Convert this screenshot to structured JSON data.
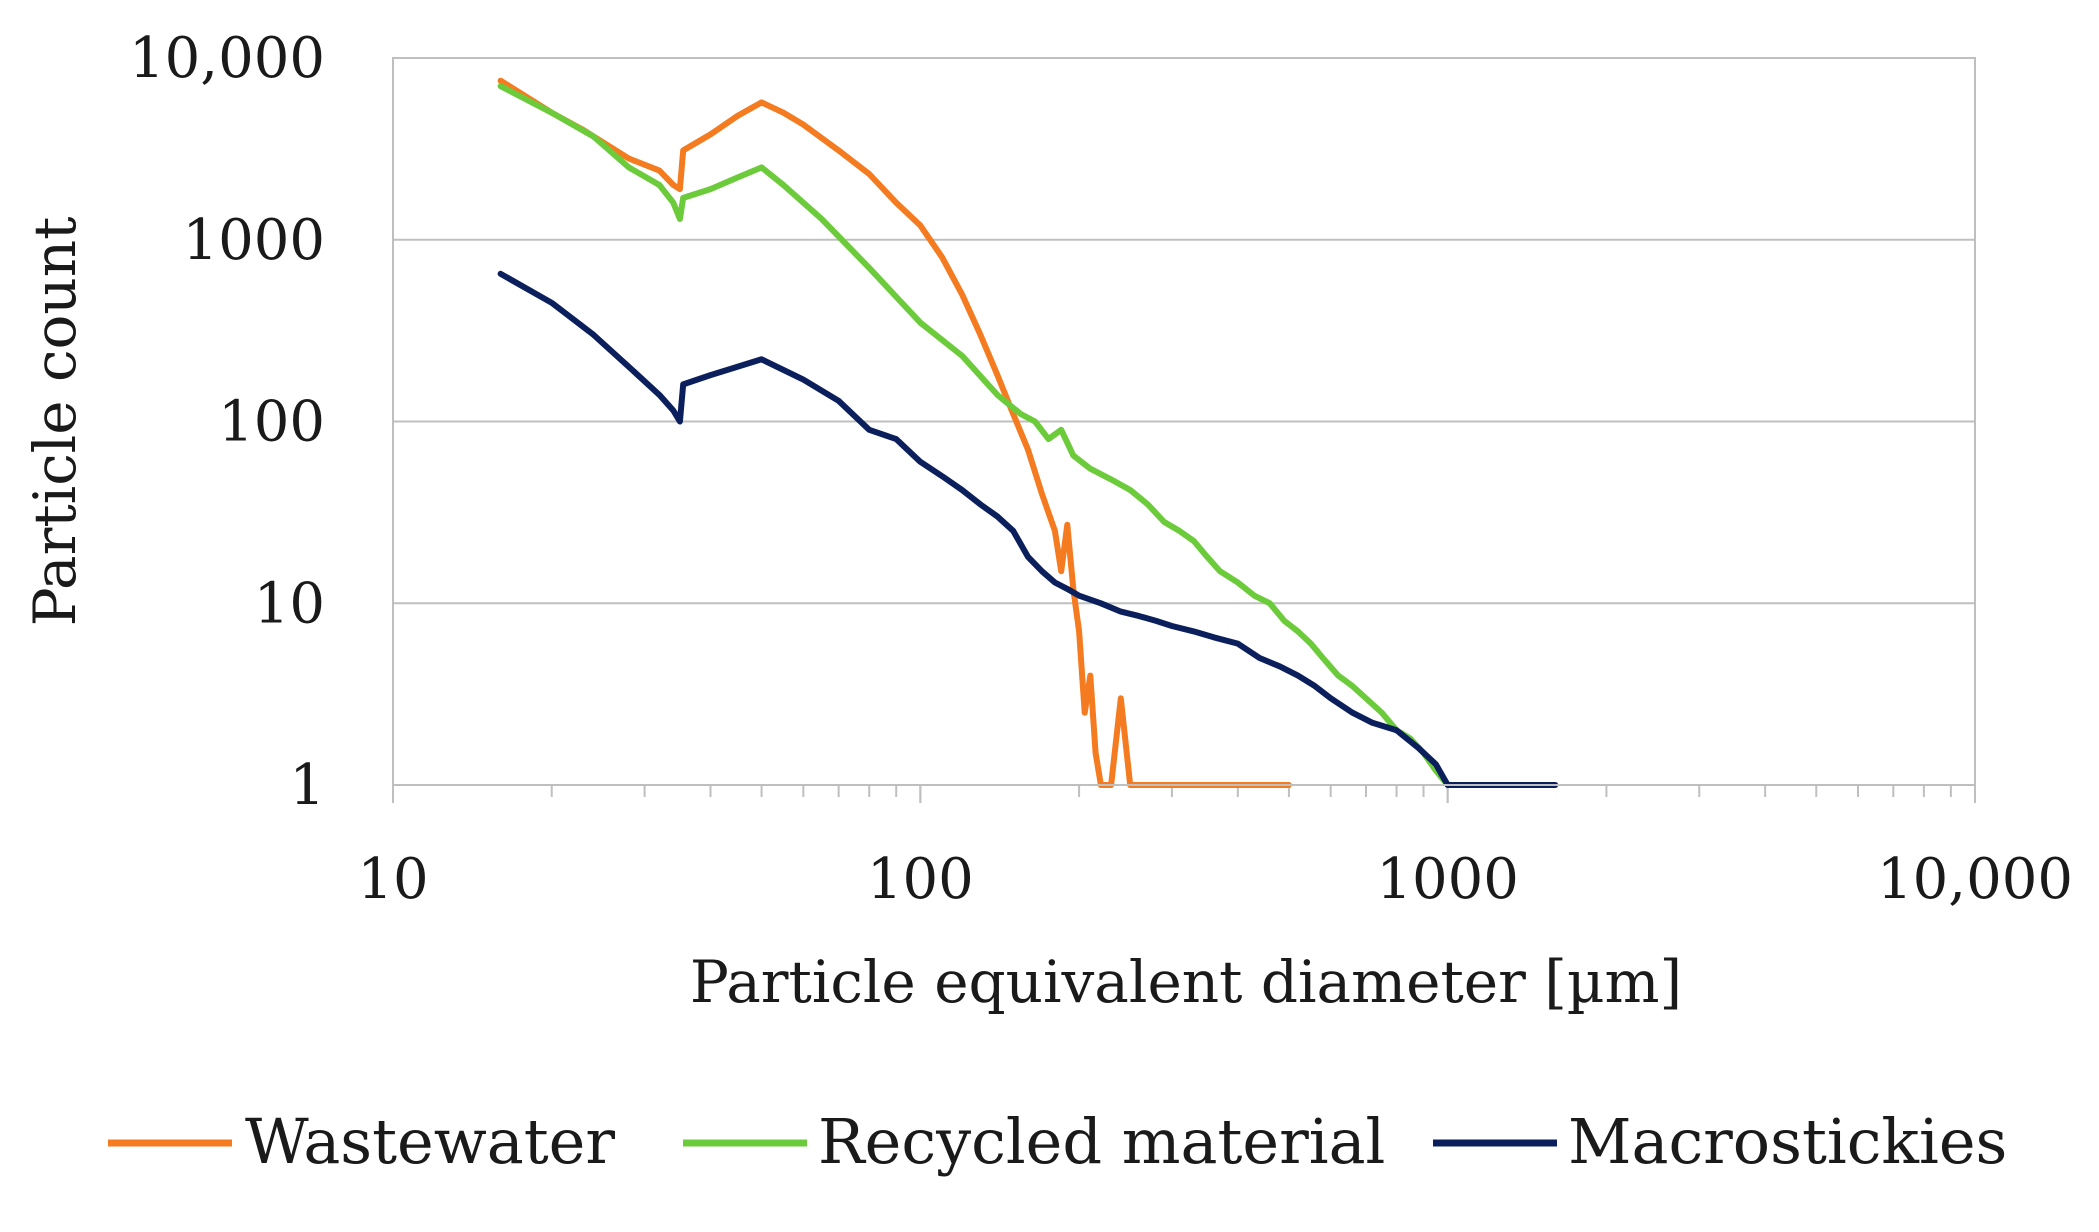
{
  "chart_data": {
    "type": "line",
    "xlabel": "Particle equivalent diameter [µm]",
    "ylabel": "Particle count",
    "x_scale": "log",
    "y_scale": "log",
    "xlim": [
      10,
      10000
    ],
    "ylim": [
      1,
      10000
    ],
    "x_ticks": [
      10,
      100,
      1000,
      10000
    ],
    "x_tick_labels": [
      "10",
      "100",
      "1000",
      "10,000"
    ],
    "y_ticks": [
      1,
      10,
      100,
      1000,
      10000
    ],
    "y_tick_labels": [
      "1",
      "10",
      "100",
      "1000",
      "10,000"
    ],
    "grid": "horizontal",
    "legend_position": "bottom",
    "series": [
      {
        "name": "Wastewater",
        "color": "#F47B20",
        "points": [
          [
            16,
            7500
          ],
          [
            20,
            5000
          ],
          [
            23,
            4000
          ],
          [
            28,
            2800
          ],
          [
            32,
            2400
          ],
          [
            34,
            2000
          ],
          [
            35,
            1900
          ],
          [
            35.5,
            3100
          ],
          [
            40,
            3800
          ],
          [
            45,
            4800
          ],
          [
            50,
            5700
          ],
          [
            55,
            5000
          ],
          [
            60,
            4300
          ],
          [
            70,
            3100
          ],
          [
            80,
            2300
          ],
          [
            90,
            1600
          ],
          [
            100,
            1200
          ],
          [
            110,
            800
          ],
          [
            120,
            500
          ],
          [
            130,
            300
          ],
          [
            140,
            180
          ],
          [
            150,
            110
          ],
          [
            160,
            70
          ],
          [
            170,
            40
          ],
          [
            180,
            25
          ],
          [
            185,
            15
          ],
          [
            190,
            27
          ],
          [
            195,
            12
          ],
          [
            200,
            7
          ],
          [
            205,
            2.5
          ],
          [
            210,
            4
          ],
          [
            215,
            1.5
          ],
          [
            220,
            1
          ],
          [
            230,
            1
          ],
          [
            240,
            3
          ],
          [
            250,
            1
          ],
          [
            300,
            1
          ],
          [
            400,
            1
          ],
          [
            500,
            1
          ]
        ]
      },
      {
        "name": "Recycled material",
        "color": "#6CCB3B",
        "points": [
          [
            16,
            7000
          ],
          [
            20,
            5000
          ],
          [
            24,
            3700
          ],
          [
            28,
            2500
          ],
          [
            32,
            2000
          ],
          [
            34,
            1600
          ],
          [
            35,
            1300
          ],
          [
            35.5,
            1700
          ],
          [
            40,
            1900
          ],
          [
            45,
            2200
          ],
          [
            50,
            2500
          ],
          [
            55,
            2000
          ],
          [
            65,
            1300
          ],
          [
            80,
            700
          ],
          [
            100,
            350
          ],
          [
            120,
            230
          ],
          [
            140,
            140
          ],
          [
            155,
            110
          ],
          [
            165,
            100
          ],
          [
            175,
            80
          ],
          [
            185,
            90
          ],
          [
            195,
            65
          ],
          [
            210,
            55
          ],
          [
            230,
            48
          ],
          [
            250,
            42
          ],
          [
            270,
            35
          ],
          [
            290,
            28
          ],
          [
            310,
            25
          ],
          [
            330,
            22
          ],
          [
            350,
            18
          ],
          [
            370,
            15
          ],
          [
            400,
            13
          ],
          [
            430,
            11
          ],
          [
            460,
            10
          ],
          [
            490,
            8
          ],
          [
            520,
            7
          ],
          [
            550,
            6
          ],
          [
            580,
            5
          ],
          [
            620,
            4
          ],
          [
            660,
            3.5
          ],
          [
            700,
            3
          ],
          [
            750,
            2.5
          ],
          [
            800,
            2
          ],
          [
            850,
            1.8
          ],
          [
            900,
            1.5
          ],
          [
            950,
            1.2
          ],
          [
            1000,
            1
          ]
        ]
      },
      {
        "name": "Macrostickies",
        "color": "#0B1F5C",
        "points": [
          [
            16,
            650
          ],
          [
            20,
            450
          ],
          [
            24,
            300
          ],
          [
            28,
            200
          ],
          [
            32,
            140
          ],
          [
            34,
            115
          ],
          [
            35,
            100
          ],
          [
            35.5,
            160
          ],
          [
            40,
            180
          ],
          [
            45,
            200
          ],
          [
            50,
            220
          ],
          [
            60,
            170
          ],
          [
            70,
            130
          ],
          [
            80,
            90
          ],
          [
            90,
            80
          ],
          [
            100,
            60
          ],
          [
            110,
            50
          ],
          [
            120,
            42
          ],
          [
            130,
            35
          ],
          [
            140,
            30
          ],
          [
            150,
            25
          ],
          [
            160,
            18
          ],
          [
            170,
            15
          ],
          [
            180,
            13
          ],
          [
            190,
            12
          ],
          [
            200,
            11
          ],
          [
            220,
            10
          ],
          [
            240,
            9
          ],
          [
            260,
            8.5
          ],
          [
            280,
            8
          ],
          [
            300,
            7.5
          ],
          [
            330,
            7
          ],
          [
            360,
            6.5
          ],
          [
            400,
            6
          ],
          [
            440,
            5
          ],
          [
            480,
            4.5
          ],
          [
            520,
            4
          ],
          [
            560,
            3.5
          ],
          [
            600,
            3
          ],
          [
            660,
            2.5
          ],
          [
            720,
            2.2
          ],
          [
            800,
            2
          ],
          [
            880,
            1.6
          ],
          [
            950,
            1.3
          ],
          [
            1000,
            1
          ],
          [
            1200,
            1
          ],
          [
            1400,
            1
          ],
          [
            1600,
            1
          ]
        ]
      }
    ]
  }
}
